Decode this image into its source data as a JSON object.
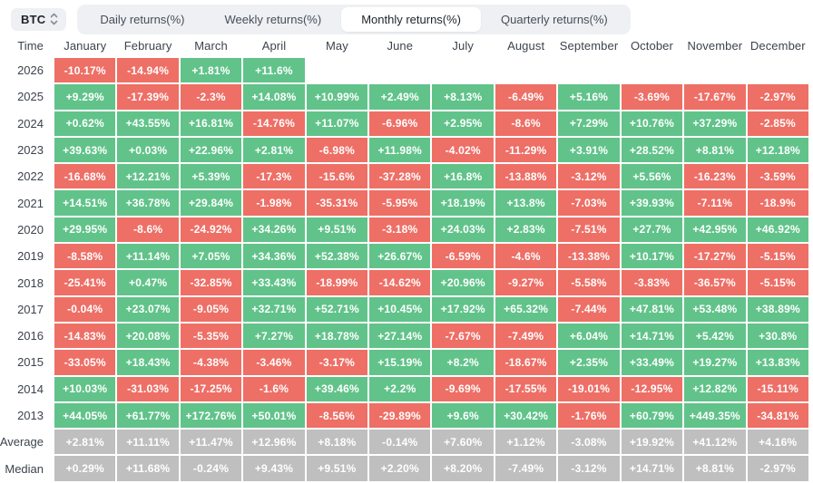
{
  "selector": {
    "label": "BTC"
  },
  "tabs": {
    "items": [
      {
        "label": "Daily returns(%)",
        "active": false
      },
      {
        "label": "Weekly returns(%)",
        "active": false
      },
      {
        "label": "Monthly returns(%)",
        "active": true
      },
      {
        "label": "Quarterly returns(%)",
        "active": false
      }
    ]
  },
  "colors": {
    "positive": "#61c38a",
    "negative": "#ee6f66",
    "stat_gray": "#bfbfbf",
    "tab_bg": "#eef0f3",
    "text_dark": "#3c434d"
  },
  "chart_data": {
    "type": "heatmap",
    "title": "BTC Monthly returns(%)",
    "columns": [
      "Time",
      "January",
      "February",
      "March",
      "April",
      "May",
      "June",
      "July",
      "August",
      "September",
      "October",
      "November",
      "December"
    ],
    "rows": [
      {
        "label": "2026",
        "stat": false,
        "values": [
          "-10.17%",
          "-14.94%",
          "+1.81%",
          "+11.6%",
          "",
          "",
          "",
          "",
          "",
          "",
          "",
          ""
        ]
      },
      {
        "label": "2025",
        "stat": false,
        "values": [
          "+9.29%",
          "-17.39%",
          "-2.3%",
          "+14.08%",
          "+10.99%",
          "+2.49%",
          "+8.13%",
          "-6.49%",
          "+5.16%",
          "-3.69%",
          "-17.67%",
          "-2.97%"
        ]
      },
      {
        "label": "2024",
        "stat": false,
        "values": [
          "+0.62%",
          "+43.55%",
          "+16.81%",
          "-14.76%",
          "+11.07%",
          "-6.96%",
          "+2.95%",
          "-8.6%",
          "+7.29%",
          "+10.76%",
          "+37.29%",
          "-2.85%"
        ]
      },
      {
        "label": "2023",
        "stat": false,
        "values": [
          "+39.63%",
          "+0.03%",
          "+22.96%",
          "+2.81%",
          "-6.98%",
          "+11.98%",
          "-4.02%",
          "-11.29%",
          "+3.91%",
          "+28.52%",
          "+8.81%",
          "+12.18%"
        ]
      },
      {
        "label": "2022",
        "stat": false,
        "values": [
          "-16.68%",
          "+12.21%",
          "+5.39%",
          "-17.3%",
          "-15.6%",
          "-37.28%",
          "+16.8%",
          "-13.88%",
          "-3.12%",
          "+5.56%",
          "-16.23%",
          "-3.59%"
        ]
      },
      {
        "label": "2021",
        "stat": false,
        "values": [
          "+14.51%",
          "+36.78%",
          "+29.84%",
          "-1.98%",
          "-35.31%",
          "-5.95%",
          "+18.19%",
          "+13.8%",
          "-7.03%",
          "+39.93%",
          "-7.11%",
          "-18.9%"
        ]
      },
      {
        "label": "2020",
        "stat": false,
        "values": [
          "+29.95%",
          "-8.6%",
          "-24.92%",
          "+34.26%",
          "+9.51%",
          "-3.18%",
          "+24.03%",
          "+2.83%",
          "-7.51%",
          "+27.7%",
          "+42.95%",
          "+46.92%"
        ]
      },
      {
        "label": "2019",
        "stat": false,
        "values": [
          "-8.58%",
          "+11.14%",
          "+7.05%",
          "+34.36%",
          "+52.38%",
          "+26.67%",
          "-6.59%",
          "-4.6%",
          "-13.38%",
          "+10.17%",
          "-17.27%",
          "-5.15%"
        ]
      },
      {
        "label": "2018",
        "stat": false,
        "values": [
          "-25.41%",
          "+0.47%",
          "-32.85%",
          "+33.43%",
          "-18.99%",
          "-14.62%",
          "+20.96%",
          "-9.27%",
          "-5.58%",
          "-3.83%",
          "-36.57%",
          "-5.15%"
        ]
      },
      {
        "label": "2017",
        "stat": false,
        "values": [
          "-0.04%",
          "+23.07%",
          "-9.05%",
          "+32.71%",
          "+52.71%",
          "+10.45%",
          "+17.92%",
          "+65.32%",
          "-7.44%",
          "+47.81%",
          "+53.48%",
          "+38.89%"
        ]
      },
      {
        "label": "2016",
        "stat": false,
        "values": [
          "-14.83%",
          "+20.08%",
          "-5.35%",
          "+7.27%",
          "+18.78%",
          "+27.14%",
          "-7.67%",
          "-7.49%",
          "+6.04%",
          "+14.71%",
          "+5.42%",
          "+30.8%"
        ]
      },
      {
        "label": "2015",
        "stat": false,
        "values": [
          "-33.05%",
          "+18.43%",
          "-4.38%",
          "-3.46%",
          "-3.17%",
          "+15.19%",
          "+8.2%",
          "-18.67%",
          "+2.35%",
          "+33.49%",
          "+19.27%",
          "+13.83%"
        ]
      },
      {
        "label": "2014",
        "stat": false,
        "values": [
          "+10.03%",
          "-31.03%",
          "-17.25%",
          "-1.6%",
          "+39.46%",
          "+2.2%",
          "-9.69%",
          "-17.55%",
          "-19.01%",
          "-12.95%",
          "+12.82%",
          "-15.11%"
        ]
      },
      {
        "label": "2013",
        "stat": false,
        "values": [
          "+44.05%",
          "+61.77%",
          "+172.76%",
          "+50.01%",
          "-8.56%",
          "-29.89%",
          "+9.6%",
          "+30.42%",
          "-1.76%",
          "+60.79%",
          "+449.35%",
          "-34.81%"
        ]
      },
      {
        "label": "Average",
        "stat": true,
        "values": [
          "+2.81%",
          "+11.11%",
          "+11.47%",
          "+12.96%",
          "+8.18%",
          "-0.14%",
          "+7.60%",
          "+1.12%",
          "-3.08%",
          "+19.92%",
          "+41.12%",
          "+4.16%"
        ]
      },
      {
        "label": "Median",
        "stat": true,
        "values": [
          "+0.29%",
          "+11.68%",
          "-0.24%",
          "+9.43%",
          "+9.51%",
          "+2.20%",
          "+8.20%",
          "-7.49%",
          "-3.12%",
          "+14.71%",
          "+8.81%",
          "-2.97%"
        ]
      }
    ]
  }
}
